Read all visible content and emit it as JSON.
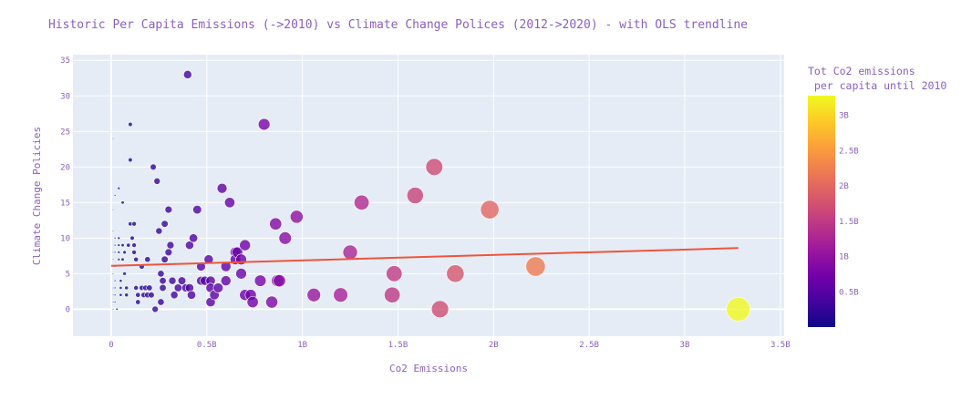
{
  "chart_data": {
    "type": "scatter",
    "title": "Historic Per Capita Emissions (->2010) vs Climate Change Polices (2012->2020) - with OLS trendline",
    "xlabel": "Co2 Emissions",
    "ylabel": "Climate Change Policies",
    "xlim": [
      -0.2,
      3.52
    ],
    "ylim": [
      -3.8,
      35.8
    ],
    "xticks": [
      0,
      0.5,
      1,
      1.5,
      2,
      2.5,
      3,
      3.5
    ],
    "xtick_labels": [
      "0",
      "0.5B",
      "1B",
      "1.5B",
      "2B",
      "2.5B",
      "3B",
      "3.5B"
    ],
    "yticks": [
      0,
      5,
      10,
      15,
      20,
      25,
      30,
      35
    ],
    "ytick_labels": [
      "0",
      "5",
      "10",
      "15",
      "20",
      "25",
      "30",
      "35"
    ],
    "grid": true,
    "colorbar": {
      "title_line1": "Tot Co2 emissions",
      "title_line2": " per capita until 2010",
      "range": [
        0,
        3.28
      ],
      "ticks": [
        0.5,
        1,
        1.5,
        2,
        2.5,
        3
      ],
      "tick_labels": [
        "0.5B",
        "1B",
        "1.5B",
        "2B",
        "2.5B",
        "3B"
      ],
      "colorscale": [
        "#0d0887",
        "#46039f",
        "#7201a8",
        "#9c179e",
        "#bd3786",
        "#d8576b",
        "#ed7953",
        "#fb9f3a",
        "#fdca26",
        "#f0f921"
      ]
    },
    "trendline": {
      "x": [
        0,
        3.28
      ],
      "y": [
        6.1,
        8.6
      ],
      "color": "#ef553b"
    },
    "points": [
      [
        0.01,
        24
      ],
      [
        0.01,
        14
      ],
      [
        0.01,
        11
      ],
      [
        0.01,
        8
      ],
      [
        0.01,
        7
      ],
      [
        0.01,
        5
      ],
      [
        0.01,
        3
      ],
      [
        0.01,
        2
      ],
      [
        0.01,
        1
      ],
      [
        0.01,
        0
      ],
      [
        0.02,
        16
      ],
      [
        0.02,
        10
      ],
      [
        0.02,
        9
      ],
      [
        0.02,
        8
      ],
      [
        0.02,
        6
      ],
      [
        0.02,
        4
      ],
      [
        0.02,
        3
      ],
      [
        0.02,
        2
      ],
      [
        0.02,
        1
      ],
      [
        0.03,
        0
      ],
      [
        0.04,
        17
      ],
      [
        0.04,
        10
      ],
      [
        0.04,
        9
      ],
      [
        0.04,
        8
      ],
      [
        0.04,
        7
      ],
      [
        0.05,
        4
      ],
      [
        0.05,
        3
      ],
      [
        0.05,
        2
      ],
      [
        0.06,
        15
      ],
      [
        0.06,
        9
      ],
      [
        0.06,
        7
      ],
      [
        0.07,
        8
      ],
      [
        0.07,
        5
      ],
      [
        0.08,
        3
      ],
      [
        0.08,
        2
      ],
      [
        0.09,
        9
      ],
      [
        0.1,
        26
      ],
      [
        0.1,
        21
      ],
      [
        0.1,
        12
      ],
      [
        0.11,
        10
      ],
      [
        0.12,
        12
      ],
      [
        0.12,
        9
      ],
      [
        0.12,
        8
      ],
      [
        0.13,
        7
      ],
      [
        0.13,
        3
      ],
      [
        0.14,
        2
      ],
      [
        0.14,
        1
      ],
      [
        0.16,
        6
      ],
      [
        0.16,
        3
      ],
      [
        0.17,
        2
      ],
      [
        0.18,
        3
      ],
      [
        0.19,
        7
      ],
      [
        0.19,
        2
      ],
      [
        0.2,
        3
      ],
      [
        0.21,
        2
      ],
      [
        0.22,
        20
      ],
      [
        0.23,
        0
      ],
      [
        0.24,
        18
      ],
      [
        0.25,
        11
      ],
      [
        0.26,
        5
      ],
      [
        0.26,
        1
      ],
      [
        0.27,
        4
      ],
      [
        0.27,
        3
      ],
      [
        0.28,
        12
      ],
      [
        0.28,
        7
      ],
      [
        0.3,
        14
      ],
      [
        0.3,
        8
      ],
      [
        0.31,
        9
      ],
      [
        0.32,
        4
      ],
      [
        0.33,
        2
      ],
      [
        0.35,
        3
      ],
      [
        0.37,
        4
      ],
      [
        0.39,
        3
      ],
      [
        0.4,
        33
      ],
      [
        0.41,
        9
      ],
      [
        0.41,
        3
      ],
      [
        0.42,
        2
      ],
      [
        0.43,
        10
      ],
      [
        0.45,
        14
      ],
      [
        0.47,
        4
      ],
      [
        0.47,
        6
      ],
      [
        0.49,
        4
      ],
      [
        0.51,
        7
      ],
      [
        0.52,
        4
      ],
      [
        0.52,
        3
      ],
      [
        0.52,
        1
      ],
      [
        0.54,
        2
      ],
      [
        0.56,
        3
      ],
      [
        0.58,
        17
      ],
      [
        0.6,
        6
      ],
      [
        0.6,
        4
      ],
      [
        0.62,
        15
      ],
      [
        0.65,
        8
      ],
      [
        0.65,
        7
      ],
      [
        0.66,
        8
      ],
      [
        0.68,
        7
      ],
      [
        0.68,
        5
      ],
      [
        0.7,
        9
      ],
      [
        0.7,
        2
      ],
      [
        0.73,
        2
      ],
      [
        0.74,
        1
      ],
      [
        0.78,
        4
      ],
      [
        0.8,
        26
      ],
      [
        0.84,
        1
      ],
      [
        0.86,
        12
      ],
      [
        0.87,
        4
      ],
      [
        0.88,
        4
      ],
      [
        0.91,
        10
      ],
      [
        0.97,
        13
      ],
      [
        1.06,
        2
      ],
      [
        1.2,
        2
      ],
      [
        1.25,
        8
      ],
      [
        1.31,
        15
      ],
      [
        1.47,
        2
      ],
      [
        1.48,
        5
      ],
      [
        1.59,
        16
      ],
      [
        1.69,
        20
      ],
      [
        1.72,
        0
      ],
      [
        1.8,
        5
      ],
      [
        1.98,
        14
      ],
      [
        2.22,
        6
      ],
      [
        3.28,
        0
      ]
    ]
  }
}
